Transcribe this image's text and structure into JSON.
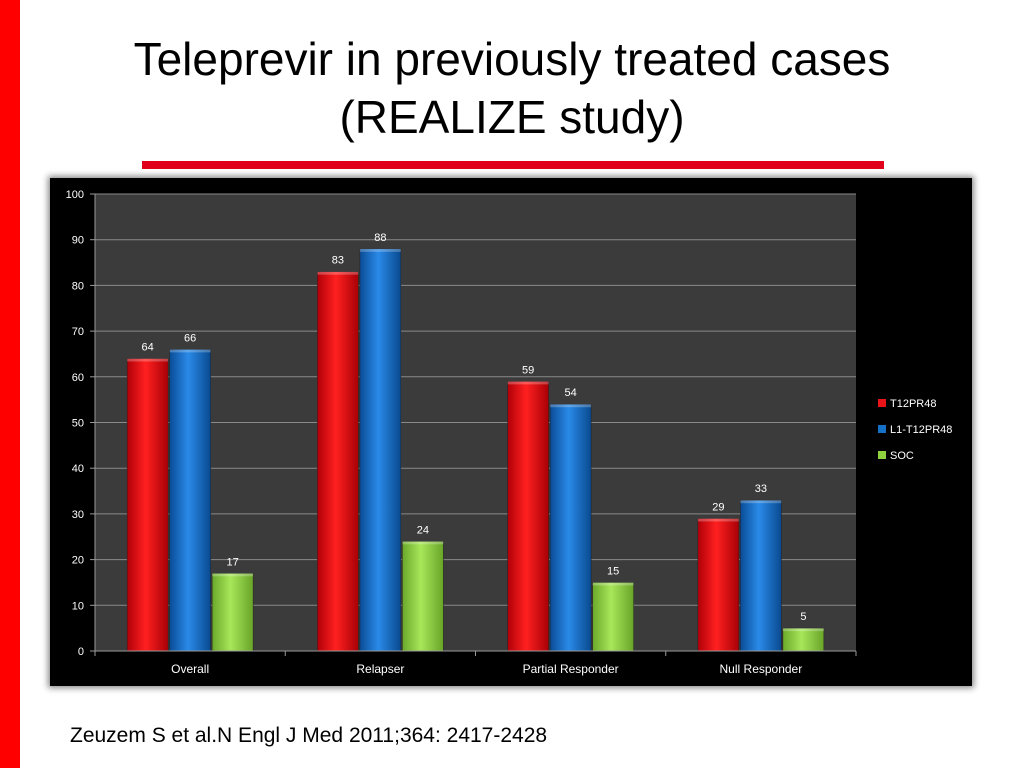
{
  "slide": {
    "title_line1": "Teleprevir in previously treated cases",
    "title_line2": "(REALIZE study)",
    "citation": "Zeuzem S et al.N Engl J Med 2011;364: 2417-2428"
  },
  "colors": {
    "accent": "#ff0000",
    "series": [
      "#e8141a",
      "#1570c8",
      "#8fd13f"
    ]
  },
  "chart_data": {
    "type": "bar",
    "categories": [
      "Overall",
      "Relapser",
      "Partial Responder",
      "Null Responder"
    ],
    "series": [
      {
        "name": "T12PR48",
        "values": [
          64,
          83,
          59,
          29
        ]
      },
      {
        "name": "L1-T12PR48",
        "values": [
          66,
          88,
          54,
          33
        ]
      },
      {
        "name": "SOC",
        "values": [
          17,
          24,
          15,
          5
        ]
      }
    ],
    "title": "",
    "xlabel": "",
    "ylabel": "",
    "ylim": [
      0,
      100
    ],
    "yticks": [
      0,
      10,
      20,
      30,
      40,
      50,
      60,
      70,
      80,
      90,
      100
    ],
    "grid": true,
    "legend": "right"
  }
}
